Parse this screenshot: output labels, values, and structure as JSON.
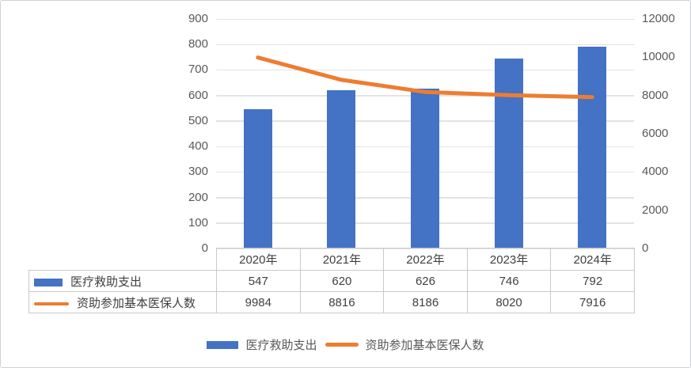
{
  "chart_data": {
    "type": "combo",
    "categories": [
      "2020年",
      "2021年",
      "2022年",
      "2023年",
      "2024年"
    ],
    "series": [
      {
        "name": "医疗救助支出",
        "type": "bar",
        "axis": "left",
        "color": "#4472C4",
        "values": [
          547,
          620,
          626,
          746,
          792
        ]
      },
      {
        "name": "资助参加基本医保人数",
        "type": "line",
        "axis": "right",
        "color": "#ED7D31",
        "values": [
          9984,
          8816,
          8186,
          8020,
          7916
        ]
      }
    ],
    "left_axis": {
      "min": 0,
      "max": 900,
      "step": 100,
      "ticks": [
        "900",
        "800",
        "700",
        "600",
        "500",
        "400",
        "300",
        "200",
        "100",
        "0"
      ]
    },
    "right_axis": {
      "min": 0,
      "max": 12000,
      "step": 2000,
      "ticks": [
        "12000",
        "10000",
        "8000",
        "6000",
        "4000",
        "2000",
        "0"
      ]
    },
    "grid": true,
    "legend_position": "bottom",
    "data_table_shown": true
  },
  "colors": {
    "bar": "#4472C4",
    "line": "#ED7D31",
    "gridline": "#e3e3e3",
    "axis_text": "#595959",
    "table_text": "#404040",
    "table_border": "#c9c9c9",
    "frame_border": "#cdd0d4"
  }
}
